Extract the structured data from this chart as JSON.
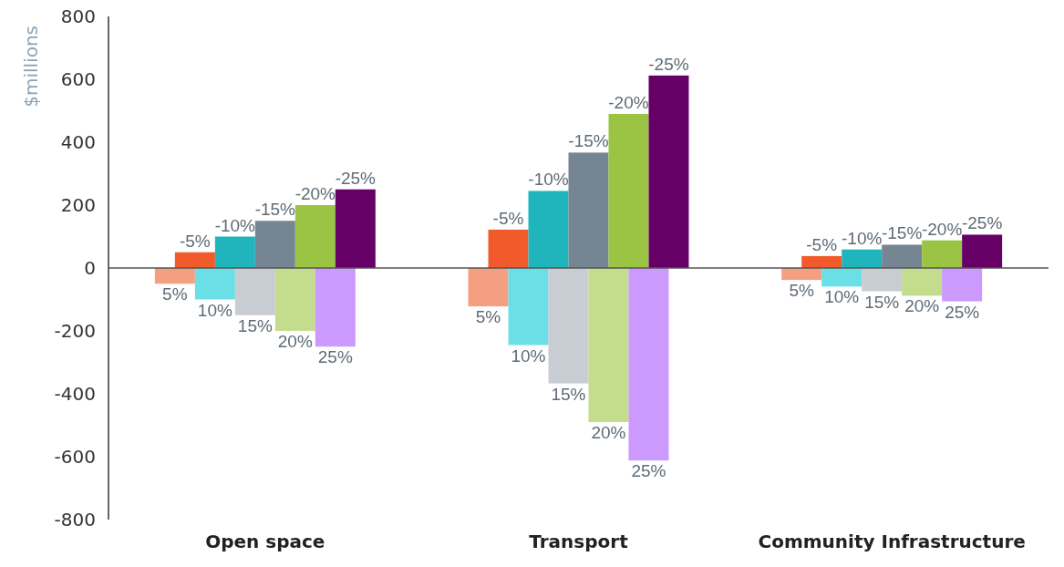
{
  "chart_data": {
    "type": "bar",
    "ylabel": "$millions",
    "categories": [
      "Open space",
      "Transport",
      "Community Infrastructure"
    ],
    "series": [
      {
        "name": "5%",
        "color": "#f4a080",
        "values": [
          -50,
          -122,
          -38
        ]
      },
      {
        "name": "-5%",
        "color": "#f15a2b",
        "values": [
          50,
          122,
          38
        ]
      },
      {
        "name": "10%",
        "color": "#6ae0e6",
        "values": [
          -100,
          -245,
          -59
        ]
      },
      {
        "name": "-10%",
        "color": "#20b5bd",
        "values": [
          100,
          245,
          59
        ]
      },
      {
        "name": "15%",
        "color": "#c8cdd3",
        "values": [
          -150,
          -367,
          -74
        ]
      },
      {
        "name": "-15%",
        "color": "#768592",
        "values": [
          150,
          367,
          74
        ]
      },
      {
        "name": "20%",
        "color": "#c3dc8e",
        "values": [
          -200,
          -490,
          -88
        ]
      },
      {
        "name": "-20%",
        "color": "#9bc445",
        "values": [
          200,
          490,
          88
        ]
      },
      {
        "name": "25%",
        "color": "#cc99ff",
        "values": [
          -250,
          -612,
          -106
        ]
      },
      {
        "name": "-25%",
        "color": "#660066",
        "values": [
          250,
          612,
          106
        ]
      }
    ],
    "ylim": [
      -800,
      800
    ],
    "yticks": [
      -800,
      -600,
      -400,
      -200,
      0,
      200,
      400,
      600,
      800
    ]
  }
}
